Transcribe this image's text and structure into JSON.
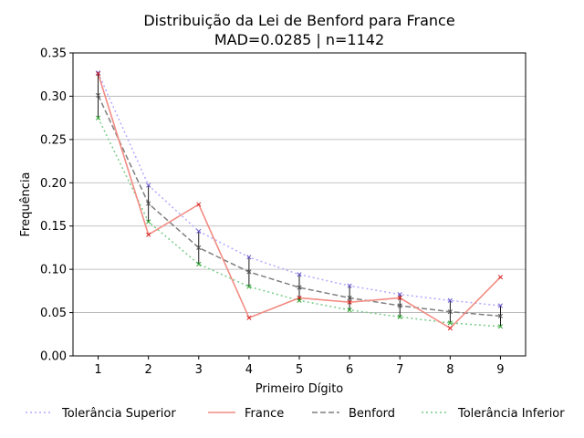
{
  "chart_data": {
    "type": "line",
    "title_line1": "Distribuição da Lei de Benford para France",
    "title_line2": "MAD=0.0285 | n=1142",
    "xlabel": "Primeiro Dígito",
    "ylabel": "Frequência",
    "x": [
      1,
      2,
      3,
      4,
      5,
      6,
      7,
      8,
      9
    ],
    "x_tick_labels": [
      "1",
      "2",
      "3",
      "4",
      "5",
      "6",
      "7",
      "8",
      "9"
    ],
    "ylim": [
      0,
      0.35
    ],
    "y_ticks": [
      0.0,
      0.05,
      0.1,
      0.15,
      0.2,
      0.25,
      0.3,
      0.35
    ],
    "y_tick_labels": [
      "0.00",
      "0.05",
      "0.10",
      "0.15",
      "0.20",
      "0.25",
      "0.30",
      "0.35"
    ],
    "grid": "horizontal",
    "legend_placement": "bottom",
    "series": [
      {
        "name": "Tolerância Superior",
        "color": "#b2aaff",
        "style": "dotted",
        "values": [
          0.327,
          0.197,
          0.144,
          0.114,
          0.094,
          0.081,
          0.071,
          0.064,
          0.058
        ]
      },
      {
        "name": "France",
        "color": "#f28b82",
        "style": "solid",
        "values": [
          0.326,
          0.14,
          0.175,
          0.044,
          0.067,
          0.062,
          0.067,
          0.032,
          0.091
        ]
      },
      {
        "name": "Benford",
        "color": "#7f7f7f",
        "style": "dashed",
        "values": [
          0.301,
          0.176,
          0.125,
          0.097,
          0.079,
          0.067,
          0.058,
          0.051,
          0.046
        ]
      },
      {
        "name": "Tolerância Inferior",
        "color": "#77cc88",
        "style": "dotted",
        "values": [
          0.275,
          0.155,
          0.106,
          0.08,
          0.064,
          0.053,
          0.045,
          0.038,
          0.034
        ]
      }
    ]
  }
}
